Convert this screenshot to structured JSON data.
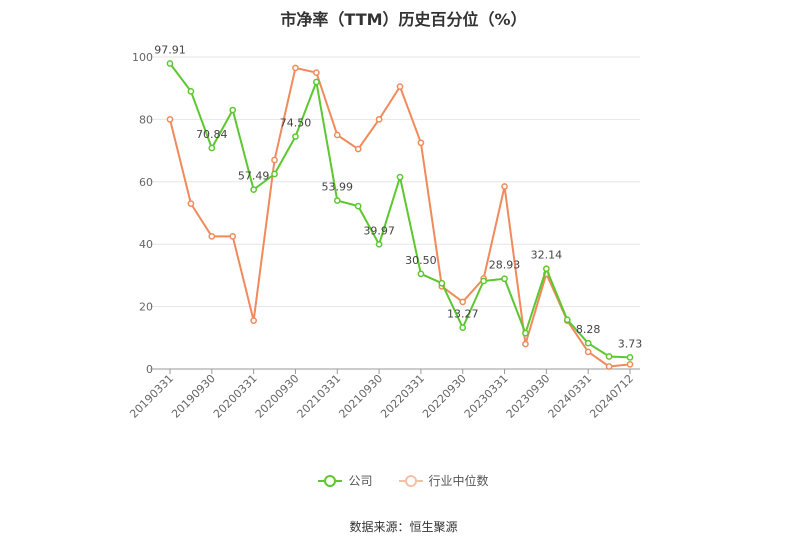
{
  "title": "市净率（TTM）历史百分位（%）",
  "source": "数据来源：恒生聚源",
  "legend": {
    "company": "公司",
    "industry": "行业中位数"
  },
  "colors": {
    "company": "#5cc72f",
    "industry": "#f08a5b",
    "grid": "#e6e6e6",
    "axis": "#999999"
  },
  "chart_data": {
    "type": "line",
    "ylim": [
      0,
      100
    ],
    "y_ticks": [
      0,
      20,
      40,
      60,
      80,
      100
    ],
    "x": [
      "20190331",
      "20190630",
      "20190930",
      "20191231",
      "20200331",
      "20200630",
      "20200930",
      "20201231",
      "20210331",
      "20210630",
      "20210930",
      "20211231",
      "20220331",
      "20220630",
      "20220930",
      "20221231",
      "20230331",
      "20230630",
      "20230930",
      "20231231",
      "20240331",
      "20240630",
      "20240712"
    ],
    "x_tick_labels": [
      "20190331",
      "20190930",
      "20200331",
      "20200930",
      "20210331",
      "20210930",
      "20220331",
      "20220930",
      "20230331",
      "20230930",
      "20240331",
      "20240712"
    ],
    "series": [
      {
        "name": "公司",
        "color": "#5cc72f",
        "values": [
          97.91,
          89,
          70.84,
          83,
          57.49,
          62.5,
          74.5,
          92,
          53.99,
          52.2,
          39.97,
          61.5,
          30.5,
          27.5,
          13.27,
          28.2,
          28.93,
          11.5,
          32.14,
          15.8,
          8.28,
          4.0,
          3.73
        ],
        "labeled_values": [
          97.91,
          null,
          70.84,
          null,
          57.49,
          null,
          74.5,
          null,
          53.99,
          null,
          39.97,
          null,
          30.5,
          null,
          13.27,
          null,
          28.93,
          null,
          32.14,
          null,
          8.28,
          null,
          3.73
        ]
      },
      {
        "name": "行业中位数",
        "color": "#f08a5b",
        "values": [
          80,
          53,
          42.5,
          42.5,
          15.5,
          67,
          96.5,
          95,
          75,
          70.5,
          80,
          90.5,
          72.5,
          26.5,
          21.5,
          29,
          58.5,
          8,
          30.5,
          15.5,
          5.5,
          0.8,
          1.5
        ]
      }
    ]
  }
}
